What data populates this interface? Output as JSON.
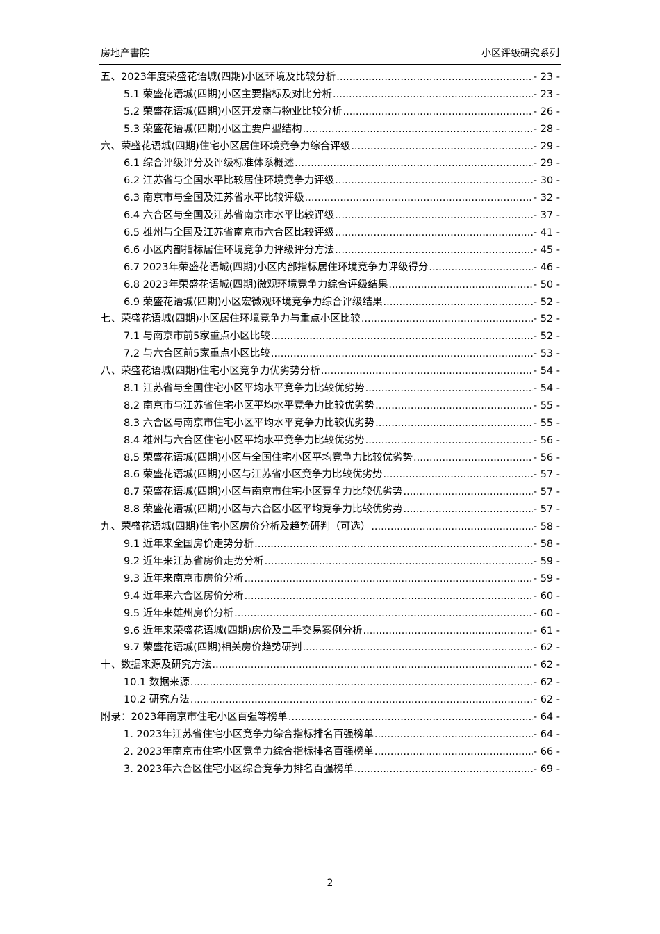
{
  "header": {
    "left": "房地产書院",
    "right": "小区评级研究系列"
  },
  "toc": [
    {
      "level": 1,
      "title": "五、2023年度荣盛花语城(四期)小区环境及比较分析",
      "page": "- 23 -"
    },
    {
      "level": 2,
      "title": "5.1 荣盛花语城(四期)小区主要指标及对比分析",
      "page": "- 23 -"
    },
    {
      "level": 2,
      "title": "5.2 荣盛花语城(四期)小区开发商与物业比较分析",
      "page": "- 26 -"
    },
    {
      "level": 2,
      "title": "5.3 荣盛花语城(四期)小区主要户型结构",
      "page": "- 28 -"
    },
    {
      "level": 1,
      "title": "六、荣盛花语城(四期)住宅小区居住环境竞争力综合评级",
      "page": "- 29 -"
    },
    {
      "level": 2,
      "title": "6.1 综合评级评分及评级标准体系概述",
      "page": "- 29 -"
    },
    {
      "level": 2,
      "title": "6.2 江苏省与全国水平比较居住环境竞争力评级",
      "page": "- 30 -"
    },
    {
      "level": 2,
      "title": "6.3 南京市与全国及江苏省水平比较评级",
      "page": "- 32 -"
    },
    {
      "level": 2,
      "title": "6.4 六合区与全国及江苏省南京市水平比较评级",
      "page": "- 37 -"
    },
    {
      "level": 2,
      "title": "6.5 雄州与全国及江苏省南京市六合区比较评级",
      "page": "- 41 -"
    },
    {
      "level": 2,
      "title": "6.6 小区内部指标居住环境竞争力评级评分方法",
      "page": "- 45 -"
    },
    {
      "level": 2,
      "title": "6.7 2023年荣盛花语城(四期)小区内部指标居住环境竞争力评级得分",
      "page": "- 46 -"
    },
    {
      "level": 2,
      "title": "6.8 2023年荣盛花语城(四期)微观环境竞争力综合评级结果",
      "page": "- 50 -"
    },
    {
      "level": 2,
      "title": "6.9 荣盛花语城(四期)小区宏微观环境竞争力综合评级结果",
      "page": "- 52 -"
    },
    {
      "level": 1,
      "title": "七、荣盛花语城(四期)小区居住环境竞争力与重点小区比较",
      "page": "- 52 -"
    },
    {
      "level": 2,
      "title": "7.1 与南京市前5家重点小区比较",
      "page": "- 52 -"
    },
    {
      "level": 2,
      "title": "7.2 与六合区前5家重点小区比较",
      "page": "- 53 -"
    },
    {
      "level": 1,
      "title": "八、荣盛花语城(四期)住宅小区竞争力优劣势分析",
      "page": "- 54 -"
    },
    {
      "level": 2,
      "title": "8.1 江苏省与全国住宅小区平均水平竞争力比较优劣势",
      "page": "- 54 -"
    },
    {
      "level": 2,
      "title": "8.2 南京市与江苏省住宅小区平均水平竞争力比较优劣势",
      "page": "- 55 -"
    },
    {
      "level": 2,
      "title": "8.3 六合区与南京市住宅小区平均水平竞争力比较优劣势",
      "page": "- 55 -"
    },
    {
      "level": 2,
      "title": "8.4 雄州与六合区住宅小区平均水平竞争力比较优劣势",
      "page": "- 56 -"
    },
    {
      "level": 2,
      "title": "8.5 荣盛花语城(四期)小区与全国住宅小区平均竞争力比较优劣势",
      "page": "- 56 -"
    },
    {
      "level": 2,
      "title": "8.6 荣盛花语城(四期)小区与江苏省小区竞争力比较优劣势",
      "page": "- 57 -"
    },
    {
      "level": 2,
      "title": "8.7 荣盛花语城(四期)小区与南京市住宅小区竞争力比较优劣势",
      "page": "- 57 -"
    },
    {
      "level": 2,
      "title": "8.8 荣盛花语城(四期)小区与六合区小区平均竞争力比较优劣势",
      "page": "- 57 -"
    },
    {
      "level": 1,
      "title": "九、荣盛花语城(四期)住宅小区房价分析及趋势研判（可选）",
      "page": "- 58 -"
    },
    {
      "level": 2,
      "title": "9.1 近年来全国房价走势分析",
      "page": "- 58 -"
    },
    {
      "level": 2,
      "title": "9.2 近年来江苏省房价走势分析",
      "page": "- 59 -"
    },
    {
      "level": 2,
      "title": "9.3 近年来南京市房价分析",
      "page": "- 59 -"
    },
    {
      "level": 2,
      "title": "9.4 近年来六合区房价分析",
      "page": "- 60 -"
    },
    {
      "level": 2,
      "title": "9.5 近年来雄州房价分析",
      "page": "- 60 -"
    },
    {
      "level": 2,
      "title": "9.6 近年来荣盛花语城(四期)房价及二手交易案例分析",
      "page": "- 61 -"
    },
    {
      "level": 2,
      "title": "9.7 荣盛花语城(四期)相关房价趋势研判",
      "page": "- 62 -"
    },
    {
      "level": 1,
      "title": "十、数据来源及研究方法",
      "page": "- 62 -"
    },
    {
      "level": 2,
      "title": "10.1 数据来源",
      "page": "- 62 -"
    },
    {
      "level": 2,
      "title": "10.2 研究方法",
      "page": "- 62 -"
    },
    {
      "level": 1,
      "title": "附录：2023年南京市住宅小区百强等榜单",
      "page": "- 64 -"
    },
    {
      "level": 2,
      "title": "1.  2023年江苏省住宅小区竞争力综合指标排名百强榜单",
      "page": "- 64 -"
    },
    {
      "level": 2,
      "title": "2.  2023年南京市住宅小区竞争力综合指标排名百强榜单",
      "page": "- 66 -"
    },
    {
      "level": 2,
      "title": "3.  2023年六合区住宅小区综合竞争力排名百强榜单",
      "page": "- 69 -"
    }
  ],
  "page_number": "2"
}
